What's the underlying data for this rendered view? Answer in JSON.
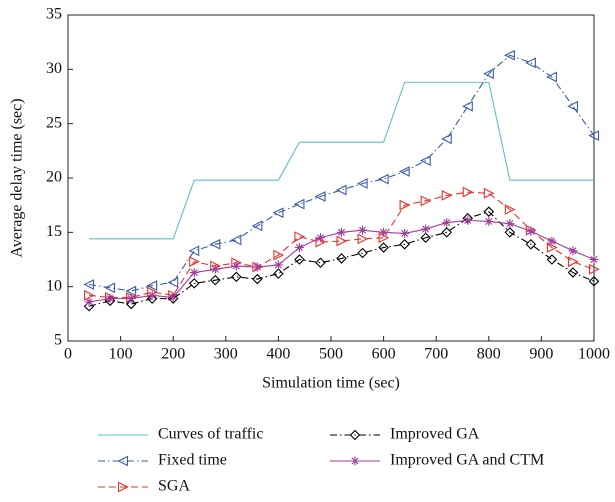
{
  "chart_data": {
    "type": "line",
    "xlabel": "Simulation time (sec)",
    "ylabel": "Average delay time (sec)",
    "x": [
      40,
      80,
      120,
      160,
      200,
      240,
      280,
      320,
      360,
      400,
      440,
      480,
      520,
      560,
      600,
      640,
      680,
      720,
      760,
      800,
      840,
      880,
      920,
      960,
      1000
    ],
    "xlim": [
      0,
      1000
    ],
    "xticks": [
      0,
      100,
      200,
      300,
      400,
      500,
      600,
      700,
      800,
      900,
      1000
    ],
    "ylim": [
      5,
      35
    ],
    "yticks": [
      5,
      10,
      15,
      20,
      25,
      30,
      35
    ],
    "series": [
      {
        "name": "Curves of traffic",
        "color": "#5bc0cc",
        "line_style": "solid",
        "marker": "none",
        "values": [
          14.4,
          14.4,
          14.4,
          14.4,
          14.4,
          19.8,
          19.8,
          19.8,
          19.8,
          19.8,
          23.3,
          23.3,
          23.3,
          23.3,
          23.3,
          28.8,
          28.8,
          28.8,
          28.8,
          28.8,
          19.8,
          19.8,
          19.8,
          19.8,
          19.8
        ]
      },
      {
        "name": "Fixed time",
        "color": "#3b5ba8",
        "line_style": "dashdot",
        "marker": "triangle-left",
        "values": [
          10.2,
          9.9,
          9.6,
          10.1,
          10.4,
          13.3,
          13.9,
          14.3,
          15.6,
          16.8,
          17.6,
          18.3,
          18.9,
          19.5,
          19.9,
          20.6,
          21.6,
          23.6,
          26.6,
          29.6,
          31.3,
          30.6,
          29.3,
          26.6,
          23.9
        ]
      },
      {
        "name": "SGA",
        "color": "#e8322b",
        "line_style": "dashed",
        "marker": "triangle-right",
        "values": [
          9.2,
          9.0,
          9.0,
          9.5,
          9.2,
          12.3,
          11.9,
          12.2,
          11.8,
          12.9,
          14.6,
          14.1,
          14.2,
          14.4,
          14.5,
          17.5,
          17.9,
          18.4,
          18.7,
          18.6,
          17.1,
          15.2,
          13.6,
          12.3,
          11.6
        ]
      },
      {
        "name": "Improved GA",
        "color": "#000000",
        "line_style": "dashdot",
        "marker": "diamond",
        "values": [
          8.2,
          8.7,
          8.4,
          8.9,
          8.9,
          10.3,
          10.6,
          10.9,
          10.7,
          11.2,
          12.5,
          12.2,
          12.6,
          13.1,
          13.6,
          13.9,
          14.5,
          15.0,
          16.3,
          16.9,
          15.0,
          13.9,
          12.5,
          11.3,
          10.5
        ]
      },
      {
        "name": "Improved GA and CTM",
        "color": "#a03c9c",
        "line_style": "solid",
        "marker": "asterisk",
        "values": [
          8.6,
          8.9,
          8.9,
          9.2,
          9.0,
          11.3,
          11.6,
          11.9,
          11.8,
          12.0,
          13.6,
          14.5,
          15.0,
          15.2,
          15.0,
          14.9,
          15.3,
          15.9,
          16.1,
          16.0,
          15.8,
          15.1,
          14.2,
          13.3,
          12.5
        ]
      }
    ]
  }
}
